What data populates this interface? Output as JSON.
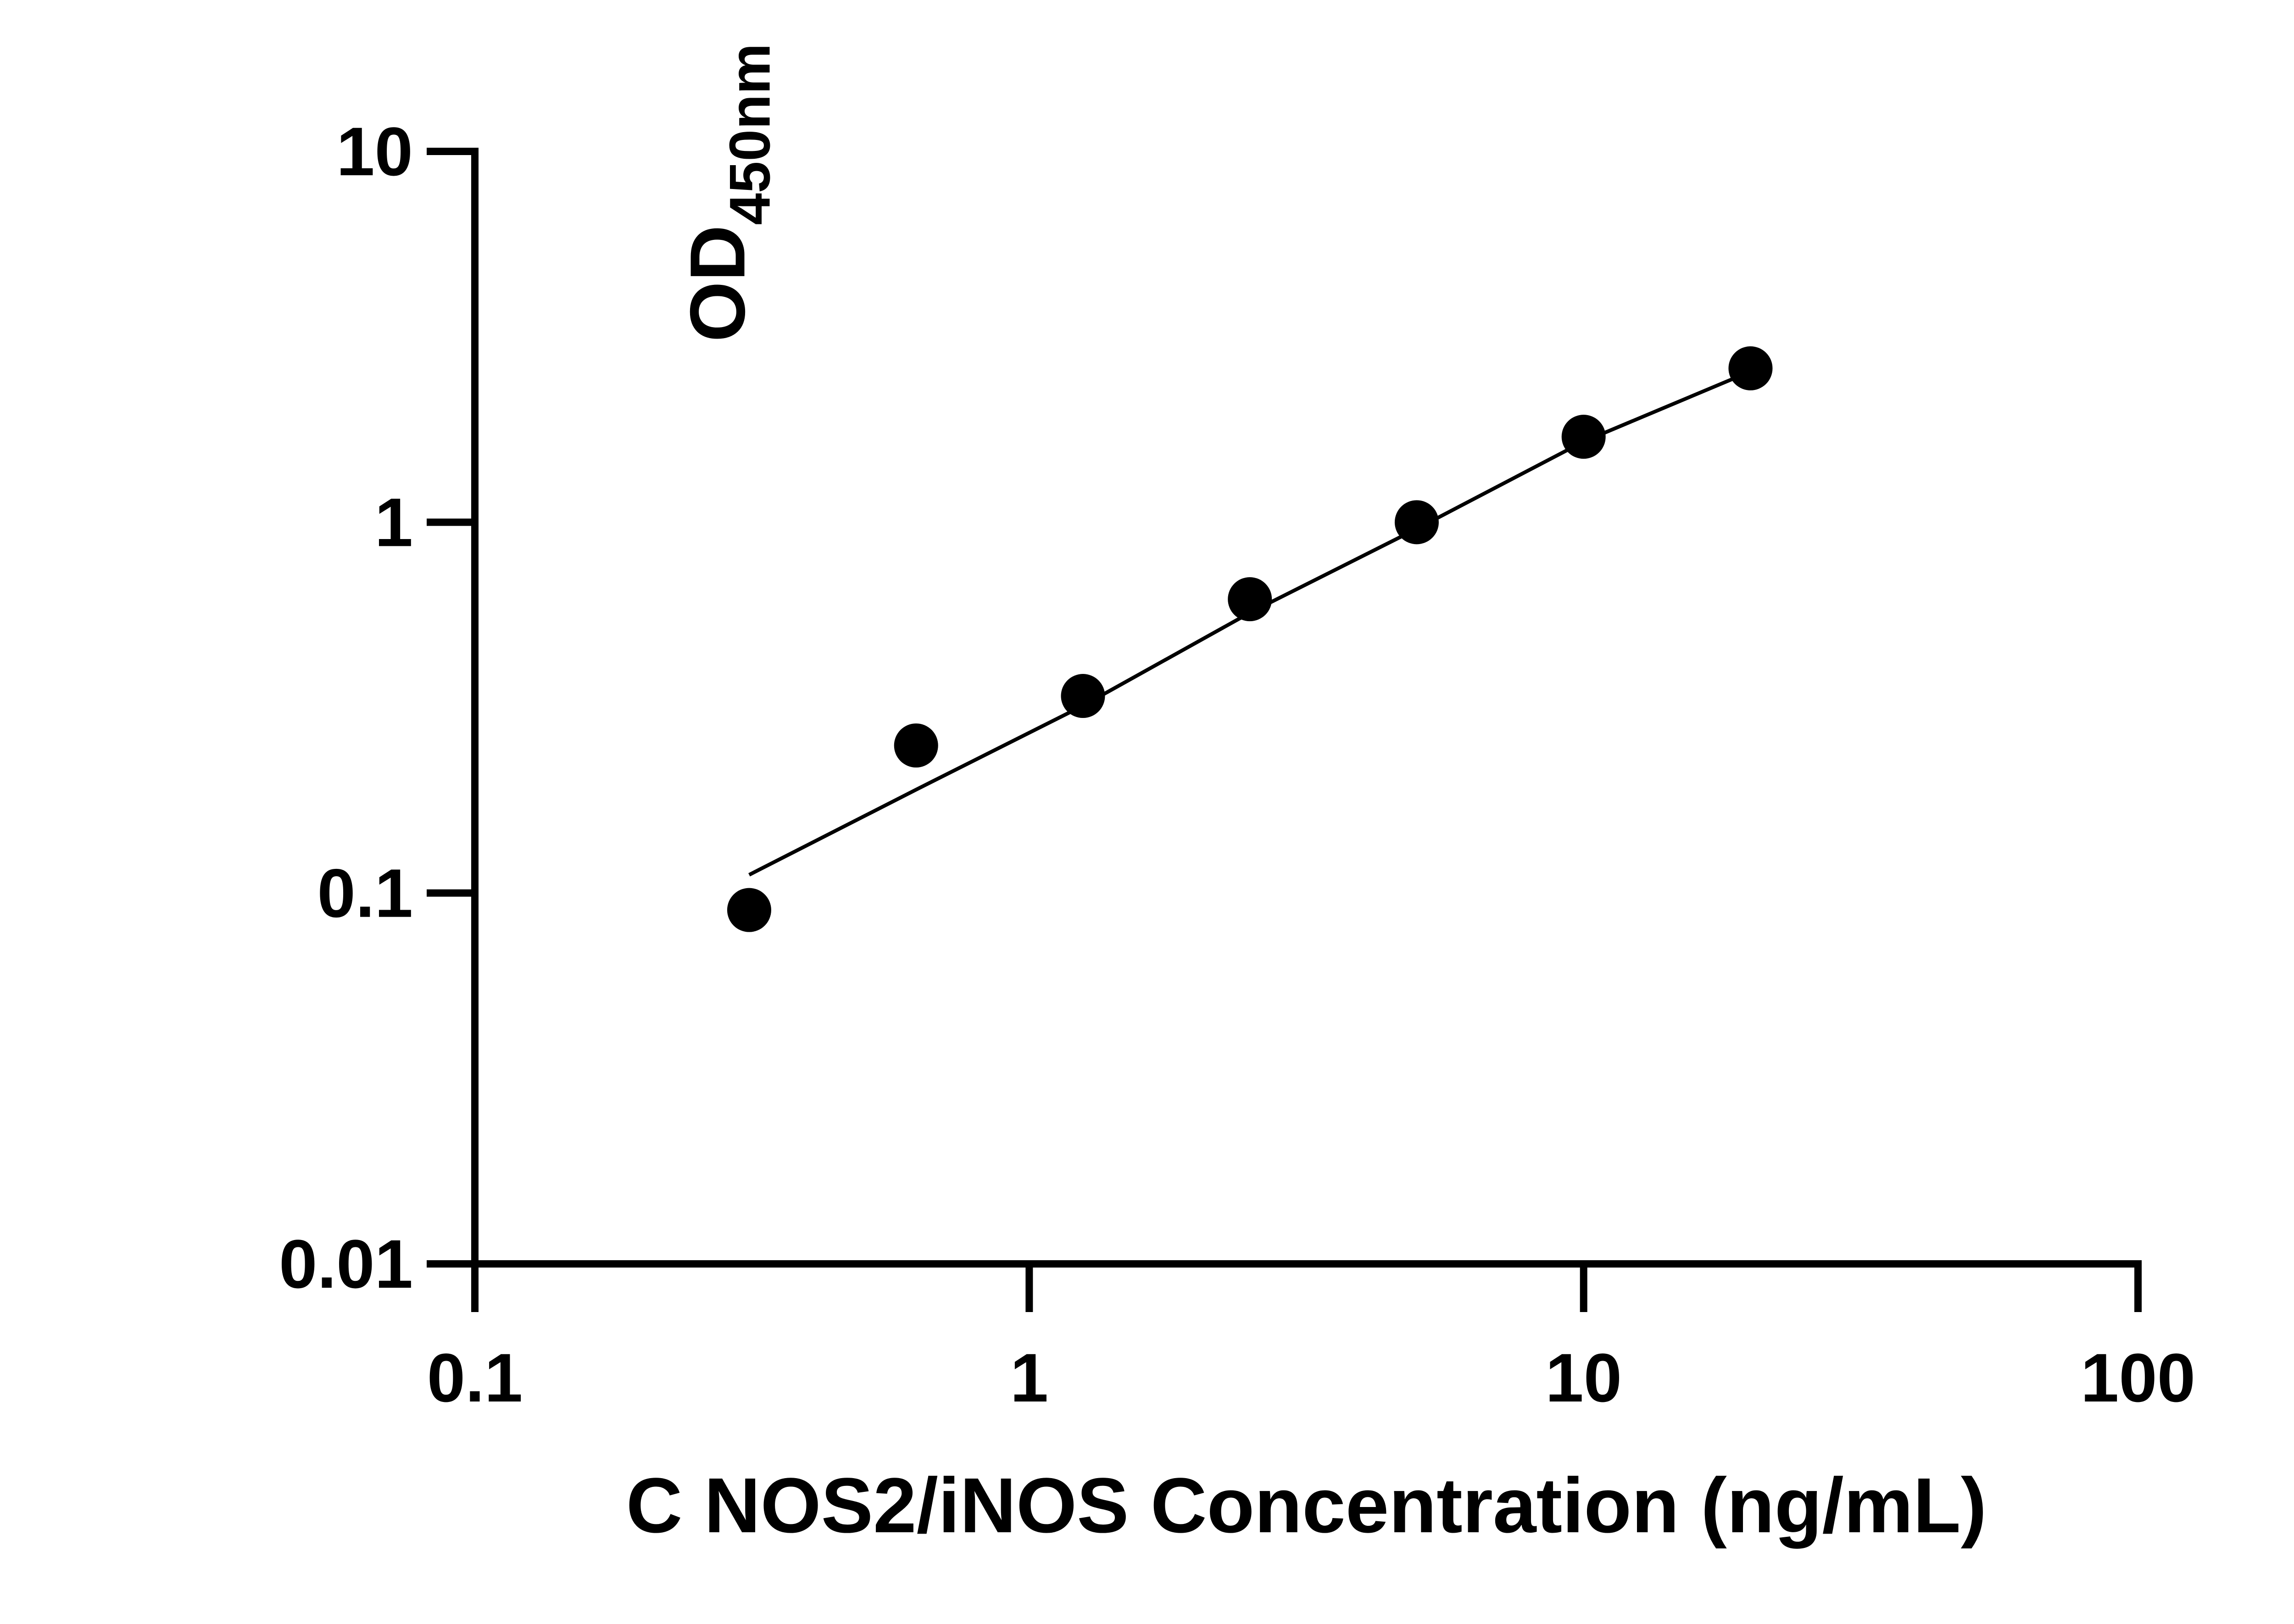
{
  "chart_data": {
    "type": "scatter",
    "title": "",
    "xlabel": "C NOS2/iNOS Concentration (ng/mL)",
    "ylabel": {
      "main": "OD",
      "subscript": "450nm"
    },
    "x_scale": "log",
    "y_scale": "log",
    "xlim": [
      0.1,
      100
    ],
    "ylim": [
      0.01,
      10
    ],
    "x_ticks": [
      "0.1",
      "1",
      "10",
      "100"
    ],
    "y_ticks": [
      "0.01",
      "0.1",
      "1",
      "10"
    ],
    "grid": false,
    "series": [
      {
        "x": [
          0.3125,
          0.625,
          1.25,
          2.5,
          5,
          10,
          20
        ],
        "y": [
          0.09,
          0.25,
          0.34,
          0.62,
          1.0,
          1.7,
          2.6
        ]
      }
    ],
    "fit_curve": {
      "x": [
        0.3125,
        0.625,
        1.25,
        2.5,
        5,
        10,
        20
      ],
      "y": [
        0.112,
        0.19,
        0.32,
        0.57,
        0.96,
        1.65,
        2.55
      ]
    }
  }
}
